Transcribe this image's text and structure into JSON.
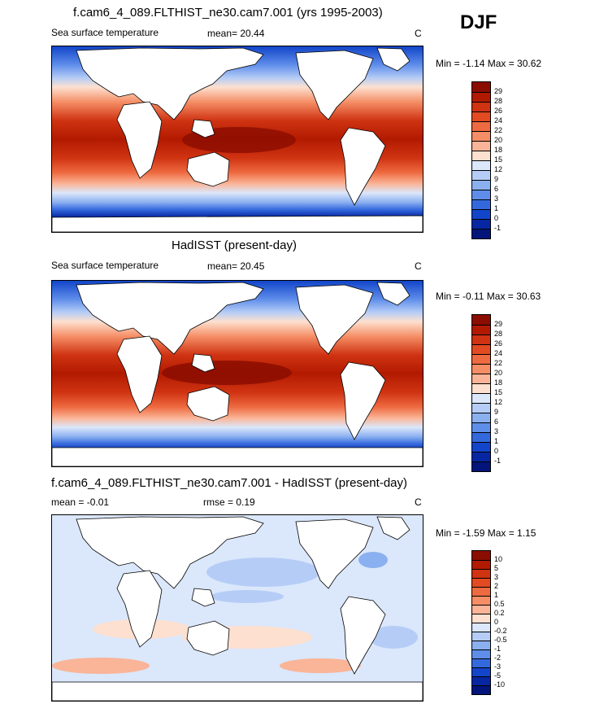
{
  "season": "DJF",
  "units": "C",
  "panels": [
    {
      "title": "f.cam6_4_089.FLTHIST_ne30.cam7.001 (yrs 1995-2003)",
      "left_label": "Sea surface temperature",
      "stat_label": "mean=  20.44",
      "units": "C",
      "minmax": "Min =  -1.14 Max =  30.62",
      "colorbar_labels": [
        "29",
        "28",
        "26",
        "24",
        "22",
        "20",
        "18",
        "15",
        "12",
        "9",
        "6",
        "3",
        "1",
        "0",
        "-1"
      ],
      "colors": [
        "#8b0d00",
        "#b21a00",
        "#cf3312",
        "#e24a22",
        "#ee6a40",
        "#f58e66",
        "#fab497",
        "#fde0cf",
        "#dbe7fb",
        "#b5cdf6",
        "#8bb0f0",
        "#5f8eea",
        "#3469de",
        "#1245c9",
        "#0727a2",
        "#03157a"
      ]
    },
    {
      "title": "HadISST (present-day)",
      "left_label": "Sea surface temperature",
      "stat_label": "mean=  20.45",
      "units": "C",
      "minmax": "Min =  -0.11 Max =  30.63",
      "colorbar_labels": [
        "29",
        "28",
        "26",
        "24",
        "22",
        "20",
        "18",
        "15",
        "12",
        "9",
        "6",
        "3",
        "1",
        "0",
        "-1"
      ],
      "colors": [
        "#8b0d00",
        "#b21a00",
        "#cf3312",
        "#e24a22",
        "#ee6a40",
        "#f58e66",
        "#fab497",
        "#fde0cf",
        "#dbe7fb",
        "#b5cdf6",
        "#8bb0f0",
        "#5f8eea",
        "#3469de",
        "#1245c9",
        "#0727a2",
        "#03157a"
      ]
    },
    {
      "title": "f.cam6_4_089.FLTHIST_ne30.cam7.001 - HadISST (present-day)",
      "left_label": "mean =  -0.01",
      "stat_label": "rmse =   0.19",
      "units": "C",
      "minmax": "Min =  -1.59 Max =   1.15",
      "colorbar_labels": [
        "10",
        "5",
        "3",
        "2",
        "1",
        "0.5",
        "0.2",
        "0",
        "-0.2",
        "-0.5",
        "-1",
        "-2",
        "-3",
        "-5",
        "-10"
      ],
      "colors": [
        "#8b0d00",
        "#b21a00",
        "#cf3312",
        "#e24a22",
        "#ee6a40",
        "#f58e66",
        "#fab497",
        "#fde0cf",
        "#dbe7fb",
        "#b5cdf6",
        "#8bb0f0",
        "#5f8eea",
        "#3469de",
        "#1245c9",
        "#0727a2",
        "#03157a"
      ]
    }
  ]
}
